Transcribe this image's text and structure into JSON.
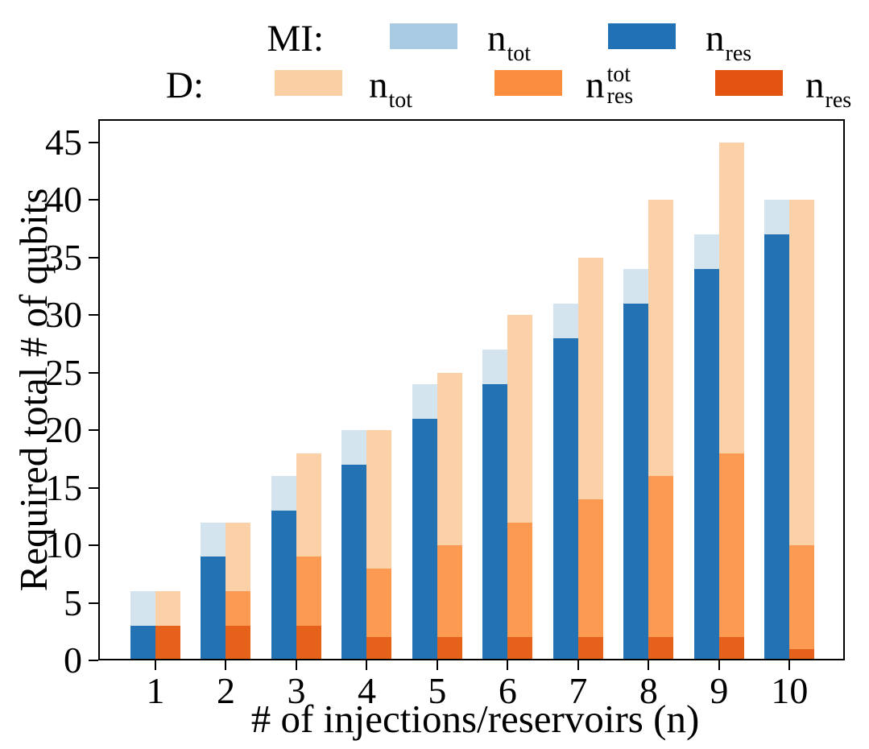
{
  "figure": {
    "background": "#ffffff"
  },
  "legend": {
    "rows": [
      {
        "label": "MI:",
        "items": [
          {
            "id": "mi-ntot",
            "base": "n",
            "sub": "tot",
            "sup": "",
            "color": "#a8cbe2"
          },
          {
            "id": "mi-nres",
            "base": "n",
            "sub": "res",
            "sup": "",
            "color": "#2171b5"
          }
        ]
      },
      {
        "label": "D:",
        "items": [
          {
            "id": "d-ntot",
            "base": "n",
            "sub": "tot",
            "sup": "",
            "color": "#fbcfa4"
          },
          {
            "id": "d-nrestot",
            "base": "n",
            "sub": "res",
            "sup": "tot",
            "color": "#fa8d3e"
          },
          {
            "id": "d-nres",
            "base": "n",
            "sub": "res",
            "sup": "",
            "color": "#e2540f"
          }
        ]
      }
    ]
  },
  "axes": {
    "xlabel": "# of injections/reservoirs (n)",
    "ylabel": "Required total # of qubits",
    "xtick_labels": [
      "1",
      "2",
      "3",
      "4",
      "5",
      "6",
      "7",
      "8",
      "9",
      "10"
    ],
    "ytick_labels": [
      "0",
      "5",
      "10",
      "15",
      "20",
      "25",
      "30",
      "35",
      "40",
      "45"
    ]
  },
  "chart_data": {
    "type": "bar",
    "mode": "overlaid-grouped",
    "title": "",
    "xlabel": "# of injections/reservoirs (n)",
    "ylabel": "Required total # of qubits",
    "x": [
      1,
      2,
      3,
      4,
      5,
      6,
      7,
      8,
      9,
      10
    ],
    "ylim": [
      0,
      47
    ],
    "yticks": [
      0,
      5,
      10,
      15,
      20,
      25,
      30,
      35,
      40,
      45
    ],
    "grid": false,
    "legend_position": "top",
    "groups": [
      {
        "name": "MI",
        "series": [
          {
            "name": "n_tot",
            "values": [
              6,
              12,
              16,
              20,
              24,
              27,
              31,
              34,
              37,
              40
            ],
            "color": "#d4e4ef"
          },
          {
            "name": "n_res",
            "values": [
              3,
              9,
              13,
              17,
              21,
              24,
              28,
              31,
              34,
              37
            ],
            "color": "#2272b4"
          }
        ]
      },
      {
        "name": "D",
        "series": [
          {
            "name": "n_tot",
            "values": [
              6,
              12,
              18,
              20,
              25,
              30,
              35,
              40,
              45,
              40
            ],
            "color": "#fcd1a7"
          },
          {
            "name": "n_res^tot",
            "values": [
              3,
              6,
              9,
              8,
              10,
              12,
              14,
              16,
              18,
              10
            ],
            "color": "#fd9a51"
          },
          {
            "name": "n_res",
            "values": [
              3,
              3,
              3,
              2,
              2,
              2,
              2,
              2,
              2,
              1
            ],
            "color": "#e6621b"
          }
        ]
      }
    ]
  }
}
